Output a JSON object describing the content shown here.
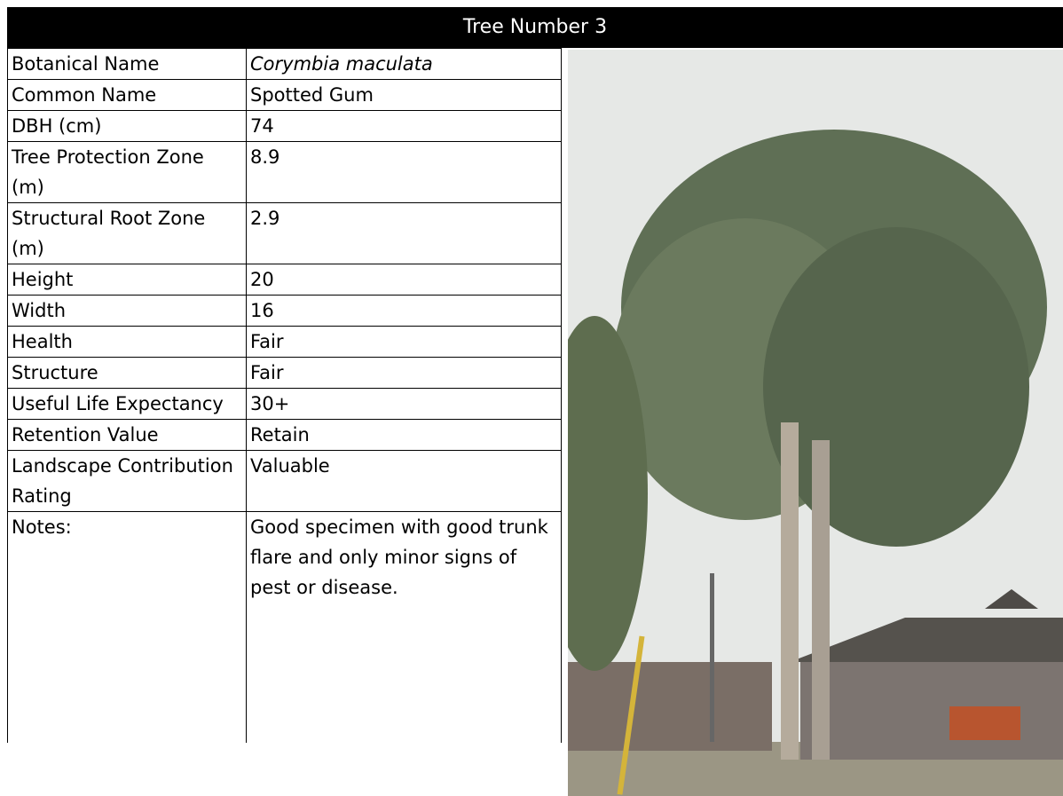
{
  "header": {
    "title": "Tree Number 3"
  },
  "table": {
    "rows": [
      [
        "Botanical Name",
        "Corymbia maculata"
      ],
      [
        "Common Name",
        "Spotted Gum"
      ],
      [
        "DBH (cm)",
        "74"
      ],
      [
        "Tree Protection Zone (m)",
        "8.9"
      ],
      [
        "Structural Root Zone (m)",
        "2.9"
      ],
      [
        "Height",
        "20"
      ],
      [
        "Width",
        "16"
      ],
      [
        "Health",
        "Fair"
      ],
      [
        "Structure",
        "Fair"
      ],
      [
        "Useful Life Expectancy",
        "30+"
      ],
      [
        "Retention Value",
        "Retain"
      ],
      [
        "Landscape Contribution Rating",
        "Valuable"
      ],
      [
        "Notes:",
        "Good specimen with good trunk flare and only minor signs of pest or disease."
      ]
    ]
  }
}
